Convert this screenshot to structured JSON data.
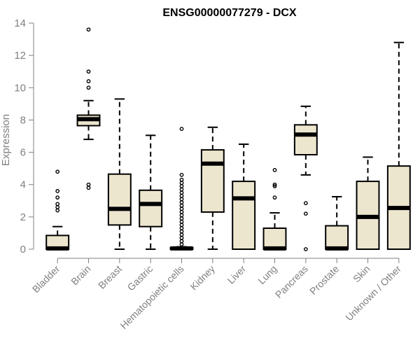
{
  "chart_data": {
    "type": "box",
    "title": "ENSG00000077279 - DCX",
    "xlabel": "",
    "ylabel": "Expression",
    "ylim": [
      0,
      14
    ],
    "yticks": [
      0,
      2,
      4,
      6,
      8,
      10,
      12,
      14
    ],
    "grid": false,
    "colors": {
      "box_fill": "#ede6cf",
      "stroke": "#000000",
      "axis": "#808080"
    },
    "categories": [
      "Bladder",
      "Brain",
      "Breast",
      "Gastric",
      "Hematopoietic cells",
      "Kidney",
      "Liver",
      "Lung",
      "Pancreas",
      "Prostate",
      "Skin",
      "Unknown / Other"
    ],
    "boxes": [
      {
        "min": 0,
        "q1": 0,
        "median": 0.05,
        "q3": 0.85,
        "max": 1.4,
        "outliers": [
          2.4,
          2.6,
          2.8,
          3.2,
          3.6,
          4.8
        ]
      },
      {
        "min": 6.8,
        "q1": 7.65,
        "median": 8.05,
        "q3": 8.3,
        "max": 9.2,
        "outliers": [
          3.8,
          4.0,
          10.0,
          10.4,
          11.0,
          13.6
        ]
      },
      {
        "min": 0,
        "q1": 1.5,
        "median": 2.5,
        "q3": 4.65,
        "max": 9.3,
        "outliers": []
      },
      {
        "min": 0,
        "q1": 1.4,
        "median": 2.8,
        "q3": 3.65,
        "max": 7.05,
        "outliers": []
      },
      {
        "min": 0,
        "q1": 0,
        "median": 0.05,
        "q3": 0.1,
        "max": 0.15,
        "outliers": [
          0.3,
          0.5,
          0.7,
          0.9,
          1.1,
          1.3,
          1.5,
          1.7,
          1.9,
          2.1,
          2.3,
          2.5,
          2.7,
          2.9,
          3.1,
          3.3,
          3.5,
          3.7,
          3.9,
          4.1,
          4.3,
          4.6,
          7.45
        ]
      },
      {
        "min": 0,
        "q1": 2.3,
        "median": 5.3,
        "q3": 6.15,
        "max": 7.55,
        "outliers": []
      },
      {
        "min": 0,
        "q1": 0,
        "median": 3.15,
        "q3": 4.2,
        "max": 6.5,
        "outliers": []
      },
      {
        "min": 0,
        "q1": 0,
        "median": 0.05,
        "q3": 1.3,
        "max": 2.25,
        "outliers": [
          3.2,
          3.9,
          4.0,
          4.9
        ]
      },
      {
        "min": 4.6,
        "q1": 5.85,
        "median": 7.1,
        "q3": 7.7,
        "max": 8.85,
        "outliers": [
          0,
          2.2,
          2.85
        ]
      },
      {
        "min": 0,
        "q1": 0,
        "median": 0.05,
        "q3": 1.45,
        "max": 3.25,
        "outliers": []
      },
      {
        "min": 0,
        "q1": 0,
        "median": 2.0,
        "q3": 4.2,
        "max": 5.7,
        "outliers": []
      },
      {
        "min": 0,
        "q1": 0,
        "median": 2.55,
        "q3": 5.15,
        "max": 12.8,
        "outliers": []
      }
    ]
  }
}
